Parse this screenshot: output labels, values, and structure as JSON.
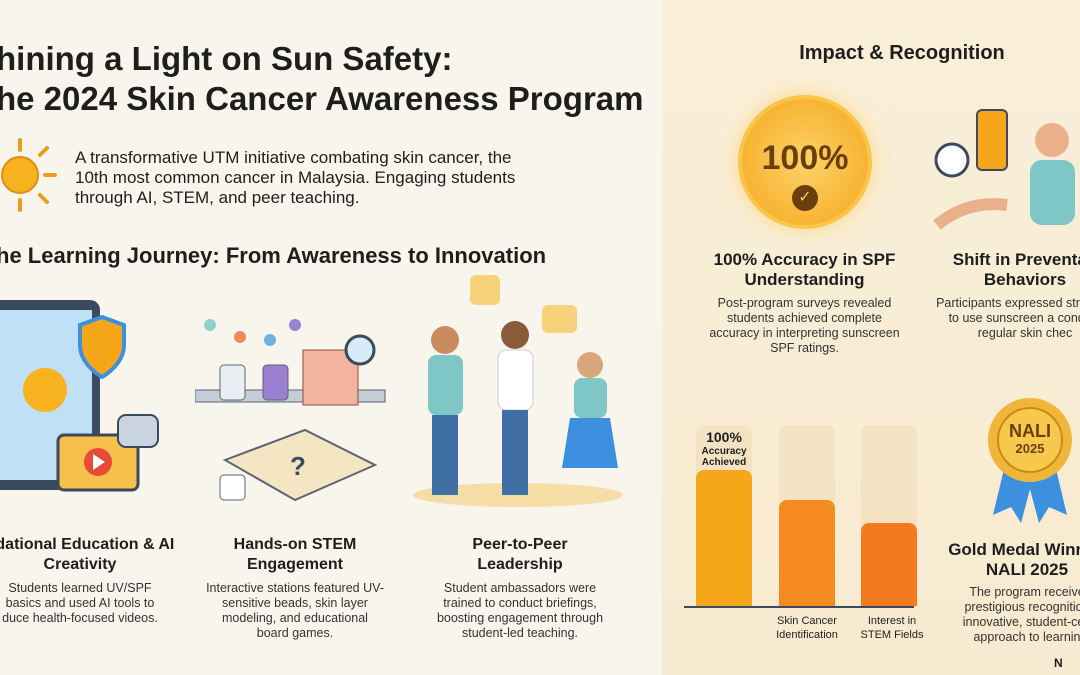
{
  "title": {
    "line1": "hining a Light on Sun Safety:",
    "line2": "he 2024 Skin Cancer Awareness Program"
  },
  "intro": "A transformative UTM initiative combating skin cancer, the 10th most common cancer in Malaysia. Engaging students through AI, STEM, and peer teaching.",
  "journey": {
    "heading": "he Learning Journey: From Awareness to Innovation",
    "steps": [
      {
        "icon": "tablet-video-robot-icon",
        "title": "ndational Education & AI Creativity",
        "desc": "Students learned UV/SPF basics and used AI tools to duce health-focused videos."
      },
      {
        "icon": "stem-stations-icon",
        "title": "Hands-on STEM Engagement",
        "desc": "Interactive stations featured UV-sensitive beads, skin layer modeling, and educational board games."
      },
      {
        "icon": "peer-students-icon",
        "title": "Peer-to-Peer Leadership",
        "desc": "Student ambassadors were trained to conduct briefings, boosting engagement through student-led teaching."
      }
    ]
  },
  "impact": {
    "heading": "Impact & Recognition",
    "medal_value": "100%",
    "card1": {
      "title": "100% Accuracy in SPF Understanding",
      "desc": "Post-program surveys revealed students achieved complete accuracy in interpreting sunscreen SPF ratings."
    },
    "card2": {
      "icon": "sunscreen-person-icon",
      "title": "Shift in Preventati Behaviors",
      "desc": "Participants expressed str intent to use sunscreen a conduct regular skin chec"
    },
    "award": {
      "badge_line1": "NALI",
      "badge_line2": "2025",
      "title": "Gold Medal Winn at NALI 2025",
      "desc": "The program receive prestigious recognition innovative, student-cen approach to learnin"
    },
    "footer_mark": "N"
  },
  "chart_data": {
    "type": "bar",
    "categories": [
      "",
      "Skin Cancer Identification",
      "Interest in STEM Fields"
    ],
    "values": [
      100,
      78,
      61
    ],
    "ylim": [
      0,
      133
    ],
    "bar_label": {
      "value": "100%",
      "text": "Accuracy Achieved"
    },
    "colors": [
      "#f6a619",
      "#f58a1f",
      "#f47a20"
    ]
  },
  "colors": {
    "accent": "#f6a619",
    "track": "#f3e3c2",
    "ribbon": "#3d8fe0"
  }
}
